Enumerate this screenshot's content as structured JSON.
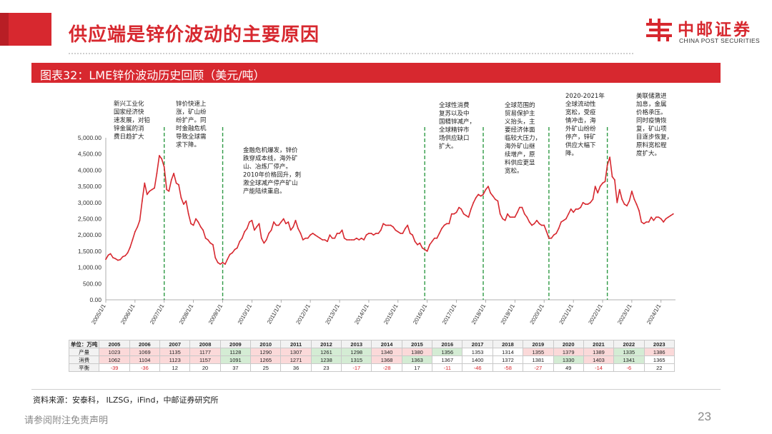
{
  "header": {
    "title": "供应端是锌价波动的主要原因",
    "brand": {
      "name_cn": "中邮证券",
      "name_en": "CHINA POST SECURITIES",
      "color": "#d7282f"
    }
  },
  "figure": {
    "title": "图表32：LME锌价波动历史回顾（美元/吨）"
  },
  "chart_data": {
    "type": "line",
    "series": [
      {
        "color": "#d7282f"
      }
    ],
    "ylim": [
      0,
      5000
    ],
    "y_ticks": [
      "0.00",
      "500.00",
      "1,000.00",
      "1,500.00",
      "2,000.00",
      "2,500.00",
      "3,000.00",
      "3,500.00",
      "4,000.00",
      "4,500.00",
      "5,000.00"
    ],
    "x_ticks": [
      "2005/1/1",
      "2006/1/1",
      "2007/1/1",
      "2008/1/1",
      "2009/1/1",
      "2010/1/1",
      "2011/1/1",
      "2012/1/1",
      "2013/1/1",
      "2014/1/1",
      "2015/1/1",
      "2016/1/1",
      "2017/1/1",
      "2018/1/1",
      "2019/1/1",
      "2020/1/1",
      "2021/1/1",
      "2022/1/1",
      "2023/1/1",
      "2024/1/1"
    ],
    "x_range": [
      "2005/1/1",
      "2024/6/30"
    ],
    "points": [
      [
        "2005/1/1",
        1250
      ],
      [
        "2005/2/1",
        1380
      ],
      [
        "2005/3/1",
        1420
      ],
      [
        "2005/4/1",
        1300
      ],
      [
        "2005/5/1",
        1270
      ],
      [
        "2005/6/1",
        1220
      ],
      [
        "2005/7/1",
        1240
      ],
      [
        "2005/8/1",
        1330
      ],
      [
        "2005/9/1",
        1360
      ],
      [
        "2005/10/1",
        1450
      ],
      [
        "2005/11/1",
        1620
      ],
      [
        "2005/12/1",
        1850
      ],
      [
        "2006/1/1",
        2100
      ],
      [
        "2006/2/1",
        2250
      ],
      [
        "2006/3/1",
        2450
      ],
      [
        "2006/4/1",
        3050
      ],
      [
        "2006/5/1",
        3600
      ],
      [
        "2006/6/1",
        3250
      ],
      [
        "2006/7/1",
        3350
      ],
      [
        "2006/8/1",
        3400
      ],
      [
        "2006/9/1",
        3450
      ],
      [
        "2006/10/1",
        3900
      ],
      [
        "2006/11/1",
        4450
      ],
      [
        "2006/12/1",
        4350
      ],
      [
        "2007/1/1",
        4100
      ],
      [
        "2007/2/1",
        3400
      ],
      [
        "2007/3/1",
        3350
      ],
      [
        "2007/4/1",
        3700
      ],
      [
        "2007/5/1",
        3900
      ],
      [
        "2007/6/1",
        3600
      ],
      [
        "2007/7/1",
        3550
      ],
      [
        "2007/8/1",
        3150
      ],
      [
        "2007/9/1",
        2950
      ],
      [
        "2007/10/1",
        3050
      ],
      [
        "2007/11/1",
        2650
      ],
      [
        "2007/12/1",
        2350
      ],
      [
        "2008/1/1",
        2300
      ],
      [
        "2008/2/1",
        2500
      ],
      [
        "2008/3/1",
        2400
      ],
      [
        "2008/4/1",
        2250
      ],
      [
        "2008/5/1",
        2150
      ],
      [
        "2008/6/1",
        1900
      ],
      [
        "2008/7/1",
        1850
      ],
      [
        "2008/8/1",
        1750
      ],
      [
        "2008/9/1",
        1700
      ],
      [
        "2008/10/1",
        1300
      ],
      [
        "2008/11/1",
        1150
      ],
      [
        "2008/12/1",
        1100
      ],
      [
        "2009/1/1",
        1150
      ],
      [
        "2009/2/1",
        1100
      ],
      [
        "2009/3/1",
        1250
      ],
      [
        "2009/4/1",
        1400
      ],
      [
        "2009/5/1",
        1450
      ],
      [
        "2009/6/1",
        1550
      ],
      [
        "2009/7/1",
        1600
      ],
      [
        "2009/8/1",
        1800
      ],
      [
        "2009/9/1",
        1900
      ],
      [
        "2009/10/1",
        2100
      ],
      [
        "2009/11/1",
        2200
      ],
      [
        "2009/12/1",
        2400
      ],
      [
        "2010/1/1",
        2450
      ],
      [
        "2010/2/1",
        2150
      ],
      [
        "2010/3/1",
        2250
      ],
      [
        "2010/4/1",
        2350
      ],
      [
        "2010/5/1",
        1900
      ],
      [
        "2010/6/1",
        1750
      ],
      [
        "2010/7/1",
        1850
      ],
      [
        "2010/8/1",
        2050
      ],
      [
        "2010/9/1",
        2150
      ],
      [
        "2010/10/1",
        2400
      ],
      [
        "2010/11/1",
        2300
      ],
      [
        "2010/12/1",
        2300
      ],
      [
        "2011/1/1",
        2400
      ],
      [
        "2011/2/1",
        2500
      ],
      [
        "2011/3/1",
        2350
      ],
      [
        "2011/4/1",
        2400
      ],
      [
        "2011/5/1",
        2150
      ],
      [
        "2011/6/1",
        2250
      ],
      [
        "2011/7/1",
        2450
      ],
      [
        "2011/8/1",
        2200
      ],
      [
        "2011/9/1",
        2050
      ],
      [
        "2011/10/1",
        1850
      ],
      [
        "2011/11/1",
        1900
      ],
      [
        "2011/12/1",
        1900
      ],
      [
        "2012/1/1",
        2000
      ],
      [
        "2012/2/1",
        2050
      ],
      [
        "2012/3/1",
        2000
      ],
      [
        "2012/4/1",
        1950
      ],
      [
        "2012/5/1",
        1900
      ],
      [
        "2012/6/1",
        1850
      ],
      [
        "2012/7/1",
        1850
      ],
      [
        "2012/8/1",
        1800
      ],
      [
        "2012/9/1",
        2000
      ],
      [
        "2012/10/1",
        1900
      ],
      [
        "2012/11/1",
        1900
      ],
      [
        "2012/12/1",
        2050
      ],
      [
        "2013/1/1",
        2050
      ],
      [
        "2013/2/1",
        2150
      ],
      [
        "2013/3/1",
        1900
      ],
      [
        "2013/4/1",
        1850
      ],
      [
        "2013/5/1",
        1850
      ],
      [
        "2013/6/1",
        1850
      ],
      [
        "2013/7/1",
        1850
      ],
      [
        "2013/8/1",
        1900
      ],
      [
        "2013/9/1",
        1850
      ],
      [
        "2013/10/1",
        1900
      ],
      [
        "2013/11/1",
        1850
      ],
      [
        "2013/12/1",
        2000
      ],
      [
        "2014/1/1",
        2050
      ],
      [
        "2014/2/1",
        2050
      ],
      [
        "2014/3/1",
        2000
      ],
      [
        "2014/4/1",
        2050
      ],
      [
        "2014/5/1",
        2050
      ],
      [
        "2014/6/1",
        2150
      ],
      [
        "2014/7/1",
        2350
      ],
      [
        "2014/8/1",
        2300
      ],
      [
        "2014/9/1",
        2300
      ],
      [
        "2014/10/1",
        2300
      ],
      [
        "2014/11/1",
        2250
      ],
      [
        "2014/12/1",
        2150
      ],
      [
        "2015/1/1",
        2100
      ],
      [
        "2015/2/1",
        2050
      ],
      [
        "2015/3/1",
        2050
      ],
      [
        "2015/4/1",
        2200
      ],
      [
        "2015/5/1",
        2300
      ],
      [
        "2015/6/1",
        2050
      ],
      [
        "2015/7/1",
        2000
      ],
      [
        "2015/8/1",
        1800
      ],
      [
        "2015/9/1",
        1700
      ],
      [
        "2015/10/1",
        1750
      ],
      [
        "2015/11/1",
        1600
      ],
      [
        "2015/12/1",
        1550
      ],
      [
        "2016/1/1",
        1500
      ],
      [
        "2016/2/1",
        1700
      ],
      [
        "2016/3/1",
        1800
      ],
      [
        "2016/4/1",
        1900
      ],
      [
        "2016/5/1",
        1900
      ],
      [
        "2016/6/1",
        2050
      ],
      [
        "2016/7/1",
        2200
      ],
      [
        "2016/8/1",
        2300
      ],
      [
        "2016/9/1",
        2350
      ],
      [
        "2016/10/1",
        2350
      ],
      [
        "2016/11/1",
        2650
      ],
      [
        "2016/12/1",
        2650
      ],
      [
        "2017/1/1",
        2700
      ],
      [
        "2017/2/1",
        2850
      ],
      [
        "2017/3/1",
        2800
      ],
      [
        "2017/4/1",
        2650
      ],
      [
        "2017/5/1",
        2600
      ],
      [
        "2017/6/1",
        2550
      ],
      [
        "2017/7/1",
        2800
      ],
      [
        "2017/8/1",
        3000
      ],
      [
        "2017/9/1",
        3150
      ],
      [
        "2017/10/1",
        3250
      ],
      [
        "2017/11/1",
        3200
      ],
      [
        "2017/12/1",
        3250
      ],
      [
        "2018/1/1",
        3400
      ],
      [
        "2018/2/1",
        3500
      ],
      [
        "2018/3/1",
        3300
      ],
      [
        "2018/4/1",
        3200
      ],
      [
        "2018/5/1",
        3100
      ],
      [
        "2018/6/1",
        3050
      ],
      [
        "2018/7/1",
        2650
      ],
      [
        "2018/8/1",
        2500
      ],
      [
        "2018/9/1",
        2450
      ],
      [
        "2018/10/1",
        2650
      ],
      [
        "2018/11/1",
        2550
      ],
      [
        "2018/12/1",
        2550
      ],
      [
        "2019/1/1",
        2550
      ],
      [
        "2019/2/1",
        2700
      ],
      [
        "2019/3/1",
        2850
      ],
      [
        "2019/4/1",
        2850
      ],
      [
        "2019/5/1",
        2650
      ],
      [
        "2019/6/1",
        2550
      ],
      [
        "2019/7/1",
        2400
      ],
      [
        "2019/8/1",
        2300
      ],
      [
        "2019/9/1",
        2350
      ],
      [
        "2019/10/1",
        2450
      ],
      [
        "2019/11/1",
        2350
      ],
      [
        "2019/12/1",
        2300
      ],
      [
        "2020/1/1",
        2300
      ],
      [
        "2020/2/1",
        2100
      ],
      [
        "2020/3/1",
        1900
      ],
      [
        "2020/4/1",
        1900
      ],
      [
        "2020/5/1",
        2000
      ],
      [
        "2020/6/1",
        2050
      ],
      [
        "2020/7/1",
        2200
      ],
      [
        "2020/8/1",
        2400
      ],
      [
        "2020/9/1",
        2450
      ],
      [
        "2020/10/1",
        2500
      ],
      [
        "2020/11/1",
        2650
      ],
      [
        "2020/12/1",
        2800
      ],
      [
        "2021/1/1",
        2700
      ],
      [
        "2021/2/1",
        2800
      ],
      [
        "2021/3/1",
        2800
      ],
      [
        "2021/4/1",
        2850
      ],
      [
        "2021/5/1",
        3000
      ],
      [
        "2021/6/1",
        2950
      ],
      [
        "2021/7/1",
        2950
      ],
      [
        "2021/8/1",
        3000
      ],
      [
        "2021/9/1",
        3100
      ],
      [
        "2021/10/1",
        3500
      ],
      [
        "2021/11/1",
        3300
      ],
      [
        "2021/12/1",
        3500
      ],
      [
        "2022/1/1",
        3600
      ],
      [
        "2022/2/1",
        3650
      ],
      [
        "2022/3/1",
        4150
      ],
      [
        "2022/4/1",
        4400
      ],
      [
        "2022/5/1",
        3800
      ],
      [
        "2022/6/1",
        3700
      ],
      [
        "2022/7/1",
        3000
      ],
      [
        "2022/8/1",
        3400
      ],
      [
        "2022/9/1",
        3100
      ],
      [
        "2022/10/1",
        2950
      ],
      [
        "2022/11/1",
        2900
      ],
      [
        "2022/12/1",
        3050
      ],
      [
        "2023/1/1",
        3350
      ],
      [
        "2023/2/1",
        3100
      ],
      [
        "2023/3/1",
        2950
      ],
      [
        "2023/4/1",
        2750
      ],
      [
        "2023/5/1",
        2400
      ],
      [
        "2023/6/1",
        2350
      ],
      [
        "2023/7/1",
        2400
      ],
      [
        "2023/8/1",
        2400
      ],
      [
        "2023/9/1",
        2550
      ],
      [
        "2023/10/1",
        2450
      ],
      [
        "2023/11/1",
        2550
      ],
      [
        "2023/12/1",
        2550
      ],
      [
        "2024/1/1",
        2500
      ],
      [
        "2024/2/1",
        2400
      ],
      [
        "2024/3/1",
        2500
      ],
      [
        "2024/4/1",
        2550
      ],
      [
        "2024/5/1",
        2600
      ],
      [
        "2024/6/1",
        2650
      ]
    ],
    "event_lines": [
      "2007/1/1",
      "2009/1/1",
      "2015/12/1",
      "2017/12/1",
      "2020/3/1",
      "2022/3/1"
    ],
    "annotations": [
      {
        "lines": [
          "新兴工业化",
          "国家经济快",
          "速发展，对铅",
          "锌金属的消",
          "费日趋扩大"
        ]
      },
      {
        "lines": [
          "锌价快速上",
          "涨，矿山纷",
          "纷扩产。同",
          "时金融危机",
          "导致全球需",
          "求下降。"
        ]
      },
      {
        "lines": [
          "金融危机爆发，锌价",
          "跌穿成本线，海外矿",
          "山、冶炼厂停产。",
          "2010年价格回升，刺",
          "激全球减产停产矿山",
          "产能陆续重启。"
        ]
      },
      {
        "lines": [
          "全球性消费",
          "复苏以及中",
          "国精锌减产，",
          "全球精锌市",
          "场供应缺口",
          "扩大。"
        ]
      },
      {
        "lines": [
          "全球范围的",
          "贸易保护主",
          "义抬头，主",
          "要经济体面",
          "临较大压力，",
          "海外矿山继",
          "续增产，原",
          "料供应更显",
          "宽松。"
        ]
      },
      {
        "lines": [
          "2020-2021年",
          "全球流动性",
          "宽松，受疫",
          "情冲击，海",
          "外矿山纷纷",
          "停产，锌矿",
          "供应大幅下",
          "降。"
        ]
      },
      {
        "lines": [
          "美联储激进",
          "加息，金属",
          "价格承压。",
          "同时疫情恢",
          "复，矿山项",
          "目逐步恢复，",
          "原料宽松程",
          "度扩大。"
        ]
      }
    ]
  },
  "table": {
    "headers": [
      "单位：万吨",
      "2005",
      "2006",
      "2007",
      "2008",
      "2009",
      "2010",
      "2011",
      "2012",
      "2013",
      "2014",
      "2015",
      "2016",
      "2017",
      "2018",
      "2019",
      "2020",
      "2021",
      "2022",
      "2023"
    ],
    "rows": [
      {
        "label": "产量",
        "values": [
          "1023",
          "1069",
          "1135",
          "1177",
          "1128",
          "1290",
          "1307",
          "1261",
          "1298",
          "1340",
          "1380",
          "1356",
          "1353",
          "1314",
          "1355",
          "1379",
          "1389",
          "1335",
          "1386"
        ],
        "shade": [
          "p",
          "p",
          "p",
          "p",
          "g",
          "p",
          "p",
          "g",
          "g",
          "p",
          "p",
          "g",
          "w",
          "w",
          "p",
          "p",
          "p",
          "g",
          "p"
        ]
      },
      {
        "label": "消费",
        "values": [
          "1062",
          "1104",
          "1123",
          "1157",
          "1091",
          "1265",
          "1271",
          "1238",
          "1315",
          "1368",
          "1363",
          "1367",
          "1400",
          "1372",
          "1381",
          "1330",
          "1403",
          "1341",
          "1365"
        ],
        "shade": [
          "p",
          "p",
          "p",
          "p",
          "g",
          "p",
          "p",
          "g",
          "g",
          "p",
          "g",
          "w",
          "w",
          "w",
          "w",
          "g",
          "p",
          "g",
          "w"
        ]
      },
      {
        "label": "平衡",
        "values": [
          "-39",
          "-36",
          "12",
          "20",
          "37",
          "25",
          "36",
          "23",
          "-17",
          "-28",
          "17",
          "-11",
          "-46",
          "-58",
          "-27",
          "49",
          "-14",
          "-6",
          "22"
        ]
      }
    ]
  },
  "footer": {
    "source": "资料来源：安泰科， ILZSG，iFind，中邮证券研究所",
    "disclaimer": "请参阅附注免责声明",
    "page": "23"
  }
}
